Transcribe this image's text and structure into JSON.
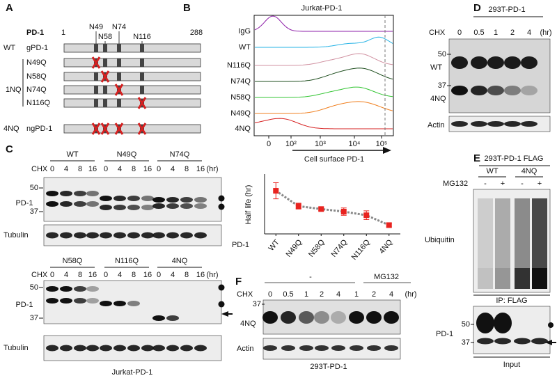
{
  "panel_a": {
    "letter": "A",
    "protein": "PD-1",
    "start": "1",
    "end": "288",
    "sites": [
      "N49",
      "N58",
      "N74",
      "N116"
    ],
    "rows": [
      {
        "group": "WT",
        "label": "gPD-1"
      },
      {
        "label": "N49Q"
      },
      {
        "label": "N58Q"
      },
      {
        "label": "N74Q"
      },
      {
        "label": "N116Q"
      },
      {
        "group": "4NQ",
        "label": "ngPD-1"
      }
    ],
    "group_label": "1NQ"
  },
  "panel_b": {
    "letter": "B",
    "title": "Jurkat-PD-1",
    "samples": [
      "IgG",
      "WT",
      "N116Q",
      "N74Q",
      "N58Q",
      "N49Q",
      "4NQ"
    ],
    "x_ticks": [
      "0",
      "10²",
      "10³",
      "10⁴",
      "10⁵"
    ],
    "x_label": "Cell surface PD-1"
  },
  "panel_c": {
    "letter": "C",
    "cell_line": "Jurkat-PD-1",
    "blots": [
      {
        "groups": [
          "WT",
          "N49Q",
          "N74Q"
        ],
        "treatment": "CHX",
        "times": [
          "0",
          "4",
          "8",
          "16"
        ],
        "unit": "(hr)",
        "markers": [
          "50",
          "37"
        ],
        "protein": "PD-1",
        "loading": "Tubulin"
      },
      {
        "groups": [
          "N58Q",
          "N116Q",
          "4NQ"
        ],
        "treatment": "CHX",
        "times": [
          "0",
          "4",
          "8",
          "16"
        ],
        "unit": "(hr)",
        "markers": [
          "50",
          "37"
        ],
        "protein": "PD-1",
        "loading": "Tubulin"
      }
    ]
  },
  "chart_data": {
    "type": "line",
    "ylabel": "Half life (hr)",
    "xlabel": "PD-1",
    "categories": [
      "WT",
      "N49Q",
      "N58Q",
      "N74Q",
      "N116Q",
      "4NQ"
    ],
    "values": [
      13.8,
      9.6,
      8.8,
      8.1,
      7.1,
      4.4
    ],
    "errors": [
      2.2,
      0.8,
      0.4,
      1.0,
      1.2,
      0.5
    ],
    "color": "#e8231f",
    "line_color": "#888888",
    "ylim": [
      2,
      18
    ]
  },
  "panel_d": {
    "letter": "D",
    "cell_line": "293T-PD-1",
    "treatment": "CHX",
    "times": [
      "0",
      "0.5",
      "1",
      "2",
      "4"
    ],
    "unit": "(hr)",
    "markers": [
      "50",
      "37"
    ],
    "rows": [
      "WT",
      "4NQ"
    ],
    "loading": "Actin"
  },
  "panel_e": {
    "letter": "E",
    "title": "293T-PD-1 FLAG",
    "groups": [
      "WT",
      "4NQ"
    ],
    "treatment": "MG132",
    "lanes": [
      "-",
      "+",
      "-",
      "+"
    ],
    "blot": "Ubiquitin",
    "ip": "IP: FLAG",
    "markers": [
      "50",
      "37"
    ],
    "protein": "PD-1",
    "input": "Input"
  },
  "panel_f": {
    "letter": "F",
    "treatment": "CHX",
    "conditions": [
      "-",
      "MG132"
    ],
    "times": [
      "0",
      "0.5",
      "1",
      "2",
      "4",
      "1",
      "2",
      "4"
    ],
    "unit": "(hr)",
    "marker": "37",
    "protein": "4NQ",
    "loading": "Actin",
    "cell_line": "293T-PD-1"
  }
}
